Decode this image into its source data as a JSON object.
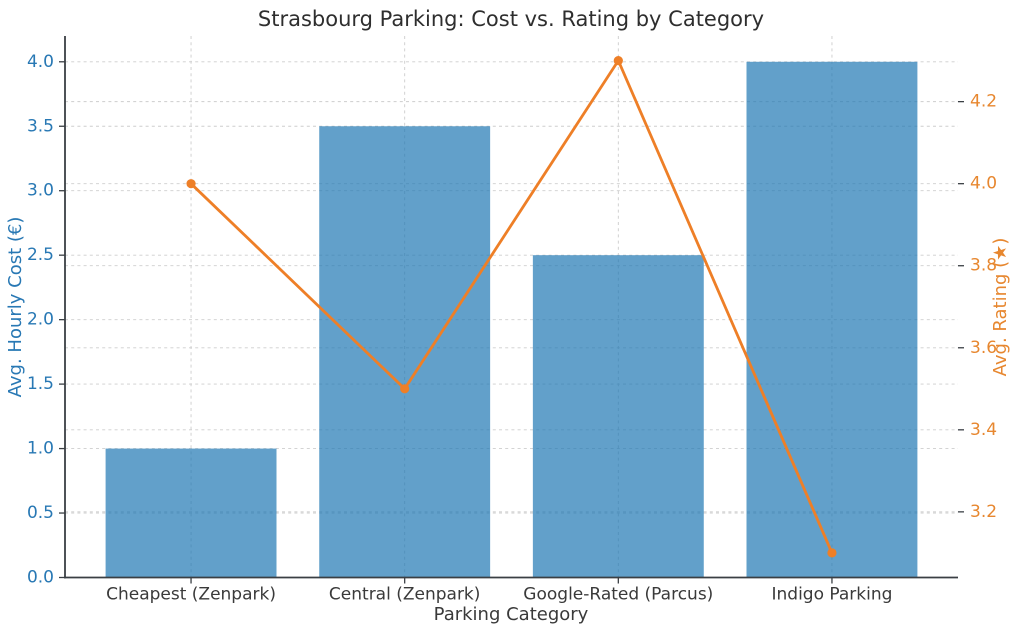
{
  "chart_data": {
    "type": "bar",
    "title": "Strasbourg Parking: Cost vs. Rating by Category",
    "xlabel": "Parking Category",
    "categories": [
      "Cheapest (Zenpark)",
      "Central (Zenpark)",
      "Google-Rated (Parcus)",
      "Indigo Parking"
    ],
    "series": [
      {
        "name": "Avg. Hourly Cost (€)",
        "type": "bar",
        "axis": "left",
        "values": [
          1.0,
          3.5,
          2.5,
          4.0
        ]
      },
      {
        "name": "Avg. Rating (★)",
        "type": "line",
        "axis": "right",
        "values": [
          4.0,
          3.5,
          4.3,
          3.1
        ]
      }
    ],
    "axes": {
      "left": {
        "label": "Avg. Hourly Cost (€)",
        "ticks": [
          0.0,
          0.5,
          1.0,
          1.5,
          2.0,
          2.5,
          3.0,
          3.5,
          4.0
        ],
        "lim": [
          0,
          4.2
        ],
        "color": "#2878b4"
      },
      "right": {
        "label": "Avg. Rating (★)",
        "ticks": [
          3.2,
          3.4,
          3.6,
          3.8,
          4.0,
          4.2
        ],
        "lim": [
          3.04,
          4.36
        ],
        "color": "#e7872f"
      },
      "x": {
        "lim": [
          -0.59,
          3.59
        ],
        "bar_width_units": 0.8
      }
    },
    "grid": {
      "on": true,
      "style": "dashed",
      "color": "#cdcdcd"
    },
    "legend": "none",
    "colors": {
      "bar_fill": "#1f77b4",
      "bar_opacity": 0.7,
      "line": "#ee7f27",
      "marker": "#ee7f27",
      "spine": "#3a3f44",
      "tick_text": "#3a3a3a",
      "title_text": "#2e2e2e"
    }
  }
}
